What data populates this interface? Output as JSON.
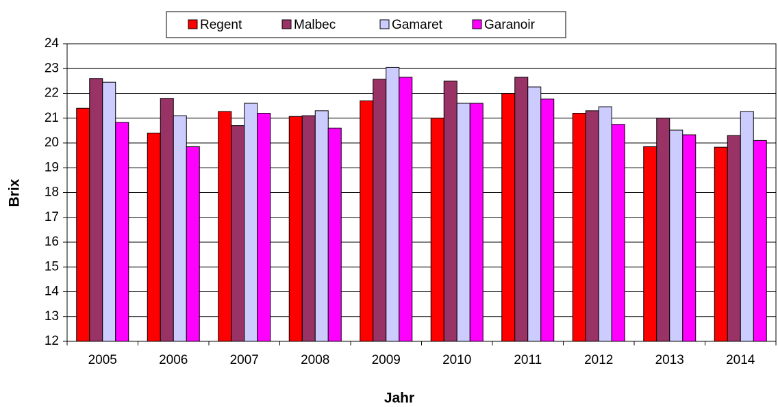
{
  "chart_data": {
    "type": "bar",
    "x_label": "Jahr",
    "y_label": "Brix",
    "categories": [
      "2005",
      "2006",
      "2007",
      "2008",
      "2009",
      "2010",
      "2011",
      "2012",
      "2013",
      "2014"
    ],
    "series": [
      {
        "name": "Regent",
        "color": "#ff0000",
        "values": [
          21.4,
          20.4,
          21.27,
          21.07,
          21.7,
          21.0,
          22.0,
          21.2,
          19.85,
          19.83
        ]
      },
      {
        "name": "Malbec",
        "color": "#993366",
        "values": [
          22.6,
          21.8,
          20.7,
          21.1,
          22.57,
          22.5,
          22.65,
          21.3,
          21.0,
          20.3
        ]
      },
      {
        "name": "Gamaret",
        "color": "#ccccff",
        "values": [
          22.45,
          21.1,
          21.6,
          21.3,
          23.05,
          21.6,
          22.26,
          21.46,
          20.52,
          21.27
        ]
      },
      {
        "name": "Garanoir",
        "color": "#ff00ff",
        "values": [
          20.83,
          19.85,
          21.2,
          20.6,
          22.65,
          21.6,
          21.77,
          20.75,
          20.33,
          20.1
        ]
      }
    ],
    "ylim": [
      12,
      24
    ],
    "yticks": [
      12,
      13,
      14,
      15,
      16,
      17,
      18,
      19,
      20,
      21,
      22,
      23,
      24
    ],
    "grid": true,
    "legend": "top"
  }
}
